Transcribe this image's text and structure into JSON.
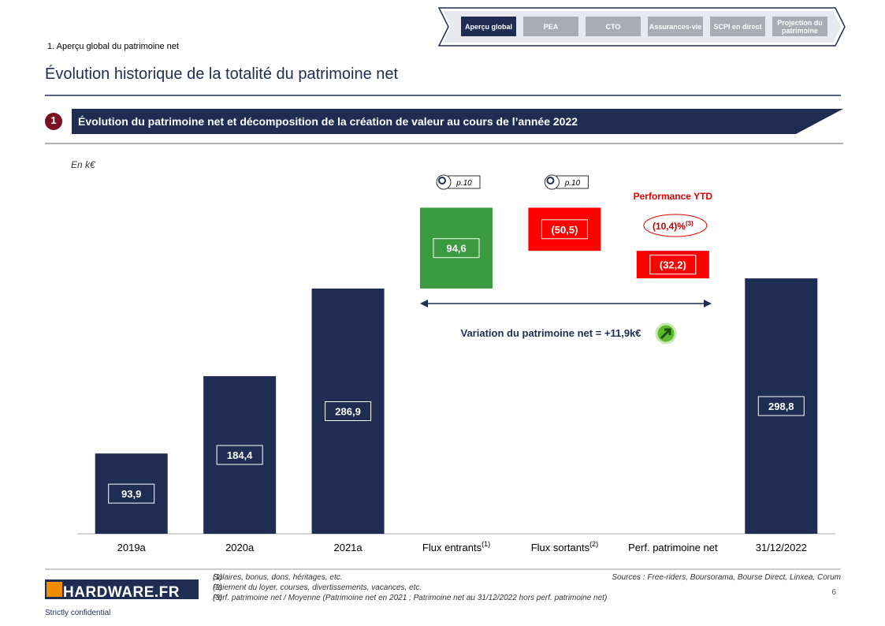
{
  "nav": {
    "tabs": [
      "Aperçu global",
      "PEA",
      "CTO",
      "Assurances-vie",
      "SCPI en direct",
      "Projection du patrimoine"
    ],
    "active": "Aperçu global"
  },
  "breadcrumb": "1. Aperçu global du patrimoine net",
  "title": "Évolution historique de la totalité du patrimoine net",
  "section": {
    "number": "1",
    "title": "Évolution du patrimoine net et décomposition de la création de valeur au cours de l’année 2022"
  },
  "chart_data": {
    "type": "waterfall",
    "unit_label": "En k€",
    "categories": [
      "2019a",
      "2020a",
      "2021a",
      "Flux entrants",
      "Flux sortants",
      "Perf. patrimoine net",
      "31/12/2022"
    ],
    "category_notes": [
      {
        "category": "Flux entrants",
        "note": "(1)"
      },
      {
        "category": "Flux sortants",
        "note": "(2)"
      }
    ],
    "values": [
      93.9,
      184.4,
      286.9,
      94.6,
      -50.5,
      -32.2,
      298.8
    ],
    "value_labels": [
      "93,9",
      "184,4",
      "286,9",
      "94,6",
      "(50,5)",
      "(32,2)",
      "298,8"
    ],
    "kinds": [
      "total",
      "total",
      "total",
      "delta",
      "delta",
      "delta",
      "total"
    ],
    "colors": [
      "#1f2d52",
      "#1f2d52",
      "#1f2d52",
      "#3a9a3f",
      "#ff0000",
      "#ff0000",
      "#1f2d52"
    ],
    "ylim": [
      0,
      440
    ],
    "page_refs": [
      {
        "category": "Flux entrants",
        "label": "p.10"
      },
      {
        "category": "Flux sortants",
        "label": "p.10"
      }
    ],
    "performance": {
      "title": "Performance YTD",
      "label": "(10,4)%",
      "note": "(3)"
    },
    "variation": "Variation du patrimoine net = +11,9k€"
  },
  "footer": {
    "logo": "HARDWARE.FR",
    "confidential": "Strictly confidential",
    "page": "6",
    "sources": "Sources : Free-riders, Boursorama, Bourse Direct, Linxea, Corum",
    "footnotes": [
      {
        "marker": "(1)",
        "text": "Salaires, bonus, dons, héritages, etc."
      },
      {
        "marker": "(2)",
        "text": "Paiement du loyer, courses, divertissements, vacances, etc."
      },
      {
        "marker": "(3)",
        "text": "Perf. patrimoine net / Moyenne (Patrimoine net en 2021 ; Patrimoine net au 31/12/2022 hors perf. patrimoine net)"
      }
    ]
  }
}
